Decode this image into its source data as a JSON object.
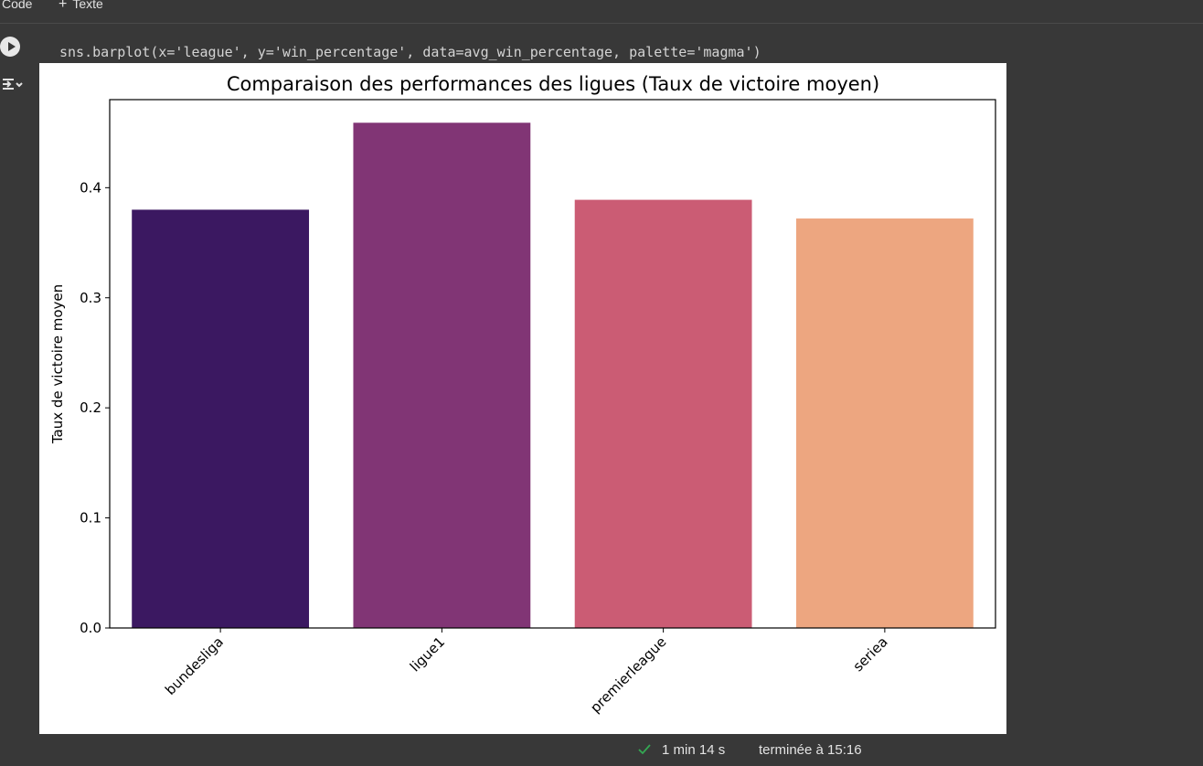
{
  "toolbar": {
    "code_label": "Code",
    "text_label": "Texte"
  },
  "cell": {
    "code": "sns.barplot(x='league', y='win_percentage', data=avg_win_percentage, palette='magma')"
  },
  "chart_data": {
    "type": "bar",
    "title": "Comparaison des performances des ligues (Taux de victoire moyen)",
    "xlabel": "",
    "ylabel": "Taux de victoire moyen",
    "categories": [
      "bundesliga",
      "ligue1",
      "premierleague",
      "seriea"
    ],
    "values": [
      0.38,
      0.459,
      0.389,
      0.372
    ],
    "colors": [
      "#3b1861",
      "#813575",
      "#cb5c74",
      "#eda680"
    ],
    "ylim": [
      0,
      0.48
    ],
    "yticks": [
      0.0,
      0.1,
      0.2,
      0.3,
      0.4
    ],
    "ytick_labels": [
      "0.0",
      "0.1",
      "0.2",
      "0.3",
      "0.4"
    ],
    "grid": false,
    "legend": "none"
  },
  "status": {
    "duration": "1 min 14 s",
    "finished": "terminée à 15:16",
    "success_color": "#34a853"
  }
}
